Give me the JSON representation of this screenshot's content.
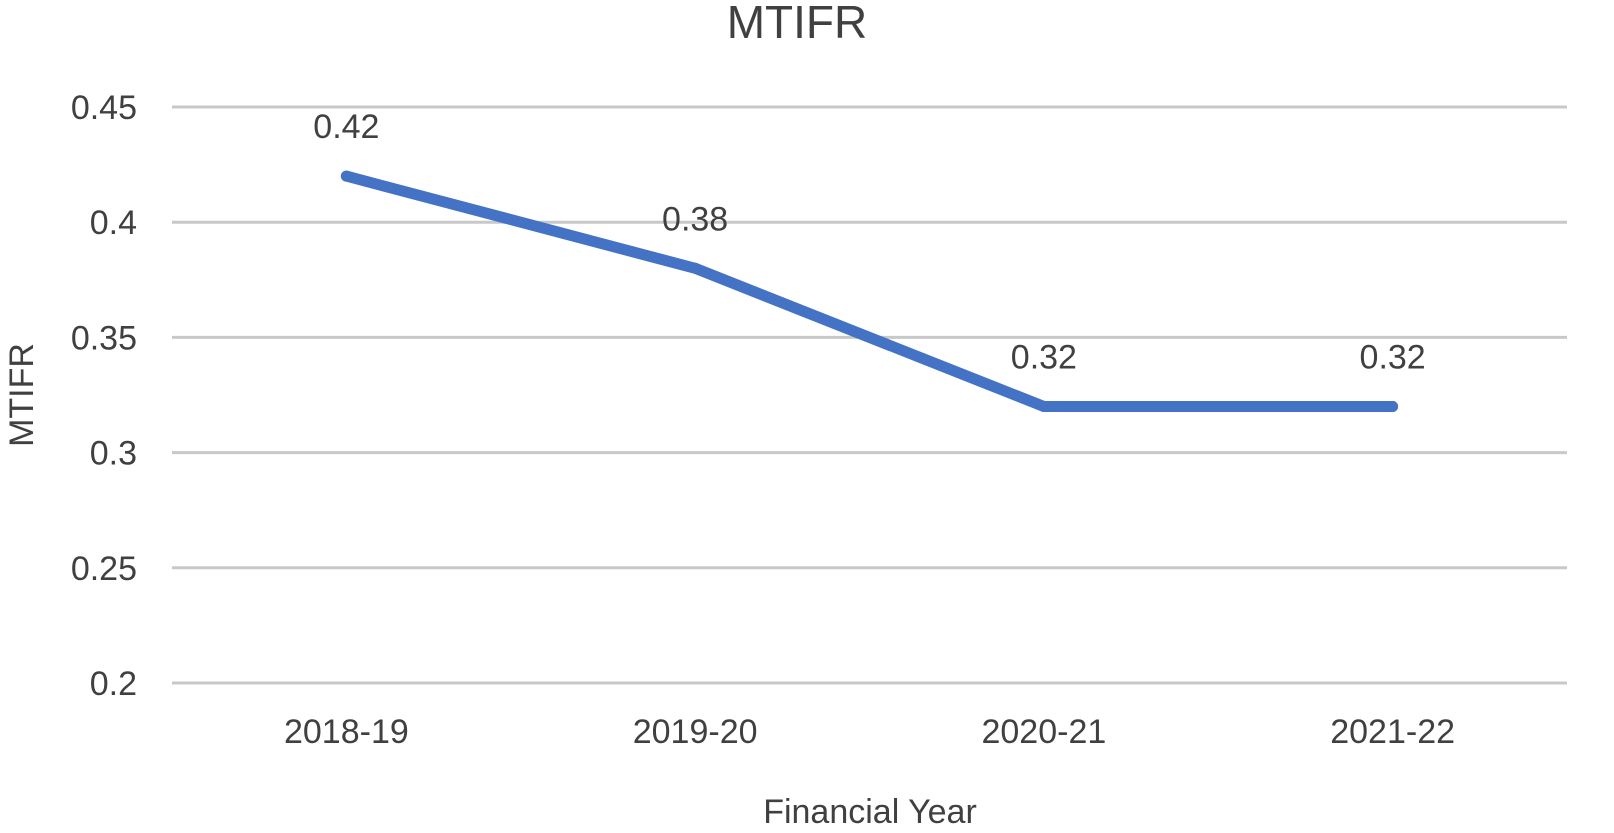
{
  "chart_data": {
    "type": "line",
    "title": "MTIFR",
    "xlabel": "Financial Year",
    "ylabel": "MTIFR",
    "categories": [
      "2018-19",
      "2019-20",
      "2020-21",
      "2021-22"
    ],
    "series": [
      {
        "values": [
          0.42,
          0.38,
          0.32,
          0.32
        ],
        "color": "#4472c4"
      }
    ],
    "data_labels": [
      "0.42",
      "0.38",
      "0.32",
      "0.32"
    ],
    "y_ticks": [
      "0.2",
      "0.25",
      "0.3",
      "0.35",
      "0.4",
      "0.45"
    ],
    "ylim": [
      0.2,
      0.45
    ],
    "grid": true,
    "legend": "none"
  }
}
